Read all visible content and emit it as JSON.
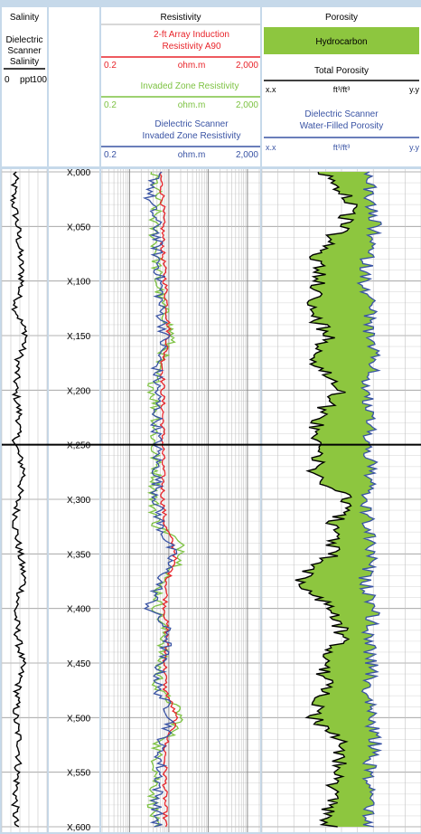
{
  "header": {
    "salinity": {
      "title": "Salinity",
      "line1": "Dielectric",
      "line2": "Scanner",
      "line3": "Salinity",
      "min": "0",
      "unit": "ppt",
      "max": "100"
    },
    "resistivity": {
      "title": "Resistivity",
      "curves": [
        {
          "label1": "2-ft Array Induction",
          "label2": "Resistivity A90",
          "min": "0.2",
          "unit": "ohm.m",
          "max": "2,000",
          "color": "#e8242a"
        },
        {
          "label1": "Invaded Zone Resistivity",
          "label2": "",
          "min": "0.2",
          "unit": "ohm.m",
          "max": "2,000",
          "color": "#7dc242"
        },
        {
          "label1": "Dielectric Scanner",
          "label2": "Invaded Zone Resistivity",
          "min": "0.2",
          "unit": "ohm.m",
          "max": "2,000",
          "color": "#3953a4"
        }
      ]
    },
    "porosity": {
      "title": "Porosity",
      "hydrocarbon": "Hydrocarbon",
      "total_label": "Total Porosity",
      "total_min": "x.x",
      "total_unit": "ft³/ft³",
      "total_max": "y.y",
      "water_label1": "Dielectric Scanner",
      "water_label2": "Water-Filled Porosity",
      "water_min": "x.x",
      "water_unit": "ft³/ft³",
      "water_max": "y.y"
    }
  },
  "colors": {
    "background": "#c6d9ea",
    "red": "#e8242a",
    "green": "#7dc242",
    "blue": "#3953a4",
    "fill": "#8dc63f"
  },
  "chart_data": {
    "type": "line",
    "x_scale": "log",
    "xlim": [
      0.2,
      2000
    ],
    "depth_labels": [
      "X,000",
      "X,050",
      "X,100",
      "X,150",
      "X,200",
      "X,250",
      "X,300",
      "X,350",
      "X,400",
      "X,450",
      "X,500",
      "X,550",
      "X,600"
    ],
    "depth_range": [
      0,
      600
    ],
    "highlight_depth": 250,
    "depth": [
      0,
      25,
      50,
      75,
      100,
      125,
      150,
      175,
      200,
      225,
      250,
      275,
      300,
      325,
      350,
      375,
      400,
      425,
      450,
      475,
      500,
      525,
      550,
      575,
      600
    ],
    "series": [
      {
        "name": "Dielectric Scanner Salinity",
        "track": "salinity",
        "values": [
          30,
          25,
          35,
          40,
          45,
          30,
          55,
          35,
          30,
          40,
          30,
          50,
          35,
          30,
          40,
          50,
          30,
          35,
          45,
          35,
          30,
          40,
          35,
          30,
          30
        ]
      },
      {
        "name": "2-ft Array Induction Resistivity A90",
        "track": "resistivity",
        "values": [
          6,
          7,
          7,
          7,
          8,
          9,
          10,
          7,
          7,
          7,
          7,
          7,
          7,
          8,
          15,
          9,
          8,
          9,
          8,
          8,
          15,
          8,
          8,
          8,
          8
        ]
      },
      {
        "name": "Invaded Zone Resistivity",
        "track": "resistivity",
        "values": [
          4,
          5,
          4,
          5,
          5,
          7,
          12,
          5,
          4,
          5,
          4,
          5,
          4,
          5,
          25,
          6,
          5,
          8,
          6,
          5,
          20,
          5,
          5,
          4,
          4
        ]
      },
      {
        "name": "Dielectric Scanner Invaded Zone Resistivity",
        "track": "resistivity",
        "values": [
          5,
          3,
          5,
          5,
          6,
          6,
          8,
          5,
          5,
          5,
          5,
          5,
          5,
          6,
          12,
          6,
          3,
          10,
          6,
          5,
          12,
          6,
          6,
          5,
          5
        ]
      },
      {
        "name": "Total Porosity",
        "track": "porosity",
        "values": [
          0.28,
          0.2,
          0.22,
          0.3,
          0.28,
          0.32,
          0.26,
          0.3,
          0.22,
          0.3,
          0.28,
          0.31,
          0.2,
          0.25,
          0.25,
          0.35,
          0.25,
          0.22,
          0.28,
          0.27,
          0.3,
          0.22,
          0.24,
          0.26,
          0.26
        ]
      },
      {
        "name": "Dielectric Scanner Water-Filled Porosity",
        "track": "porosity",
        "values": [
          0.14,
          0.15,
          0.13,
          0.15,
          0.16,
          0.14,
          0.15,
          0.13,
          0.16,
          0.14,
          0.15,
          0.14,
          0.16,
          0.15,
          0.14,
          0.16,
          0.13,
          0.15,
          0.14,
          0.15,
          0.14,
          0.13,
          0.15,
          0.14,
          0.15
        ]
      }
    ]
  }
}
